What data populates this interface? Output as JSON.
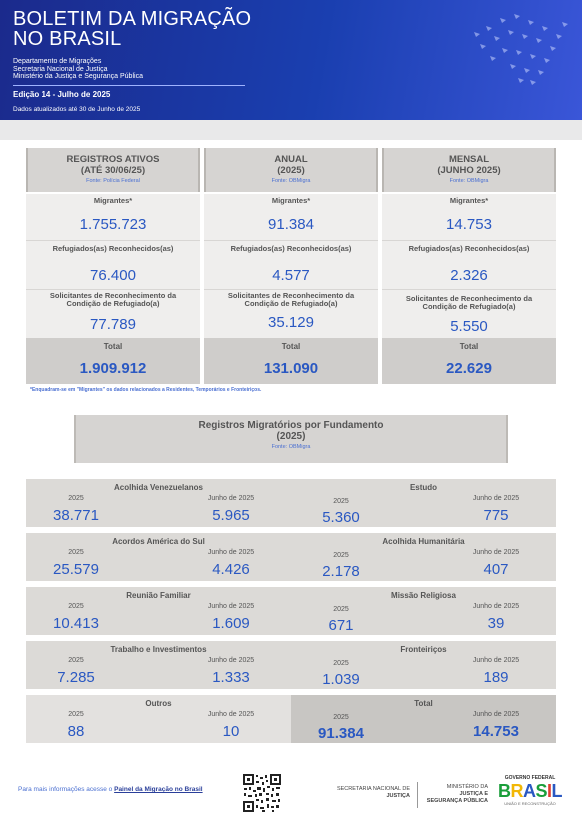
{
  "header": {
    "title_line1": "BOLETIM DA MIGRAÇÃO",
    "title_line2": "NO BRASIL",
    "dept_line1": "Departamento de Migrações",
    "dept_line2": "Secretaria Nacional de Justiça",
    "dept_line3": "Ministério da Justiça e Segurança Pública",
    "edition": "Edição 14 - Julho de 2025",
    "updated": "Dados atualizados até 30 de Junho de 2025"
  },
  "summary": {
    "columns": [
      {
        "title_line1": "REGISTROS ATIVOS",
        "title_line2": "(ATÉ 30/06/25)",
        "source": "Fonte: Polícia Federal",
        "migrantes_label": "Migrantes*",
        "migrantes": "1.755.723",
        "refugiados_label": "Refugiados(as) Reconhecidos(as)",
        "refugiados": "76.400",
        "solicitantes_label_line1": "Solicitantes de Reconhecimento da",
        "solicitantes_label_line2": "Condição de Refugiado(a)",
        "solicitantes": "77.789",
        "total_label": "Total",
        "total": "1.909.912"
      },
      {
        "title_line1": "ANUAL",
        "title_line2": "(2025)",
        "source": "Fonte: OBMigra",
        "migrantes_label": "Migrantes*",
        "migrantes": "91.384",
        "refugiados_label": "Refugiados(as) Reconhecidos(as)",
        "refugiados": "4.577",
        "solicitantes_label_line1": "Solicitantes de Reconhecimento da",
        "solicitantes_label_line2": "Condição de Refugiado(a)",
        "solicitantes": "35.129",
        "total_label": "Total",
        "total": "131.090"
      },
      {
        "title_line1": "MENSAL",
        "title_line2": "(JUNHO 2025)",
        "source": "Fonte: OBMigra",
        "migrantes_label": "Migrantes*",
        "migrantes": "14.753",
        "refugiados_label": "Refugiados(as) Reconhecidos(as)",
        "refugiados": "2.326",
        "solicitantes_label_line1": "Solicitantes de Reconhecimento da",
        "solicitantes_label_line2": "Condição de Refugiado(a)",
        "solicitantes": "5.550",
        "total_label": "Total",
        "total": "22.629"
      }
    ],
    "footnote": "*Enquadram-se em \"Migrantes\" os dados relacionados a Residentes, Temporários e Fronteiriços."
  },
  "fundamento": {
    "title_line1": "Registros Migratórios por Fundamento",
    "title_line2": "(2025)",
    "source": "Fonte: OBMigra",
    "year_label": "2025",
    "month_label": "Junho de 2025",
    "cells": [
      {
        "name": "Acolhida Venezuelanos",
        "year": "38.771",
        "month": "5.965"
      },
      {
        "name": "Estudo",
        "year": "5.360",
        "month": "775"
      },
      {
        "name": "Acordos América do Sul",
        "year": "25.579",
        "month": "4.426"
      },
      {
        "name": "Acolhida Humanitária",
        "year": "2.178",
        "month": "407"
      },
      {
        "name": "Reunião Familiar",
        "year": "10.413",
        "month": "1.609"
      },
      {
        "name": "Missão Religiosa",
        "year": "671",
        "month": "39"
      },
      {
        "name": "Trabalho e Investimentos",
        "year": "7.285",
        "month": "1.333"
      },
      {
        "name": "Fronteiriços",
        "year": "1.039",
        "month": "189"
      },
      {
        "name": "Outros",
        "year": "88",
        "month": "10"
      },
      {
        "name": "Total",
        "year": "91.384",
        "month": "14.753"
      }
    ]
  },
  "footer": {
    "info_prefix": "Para mais informações acesse o ",
    "info_link": "Painel da Migração no Brasil",
    "sec_line1": "SECRETARIA NACIONAL DE",
    "sec_line2": "JUSTIÇA",
    "min_line1": "MINISTÉRIO DA",
    "min_line2": "JUSTIÇA E",
    "min_line3": "SEGURANÇA PÚBLICA",
    "gov_top": "GOVERNO FEDERAL",
    "gov_brand": "BRASIL",
    "gov_sub": "UNIÃO E RECONSTRUÇÃO"
  }
}
